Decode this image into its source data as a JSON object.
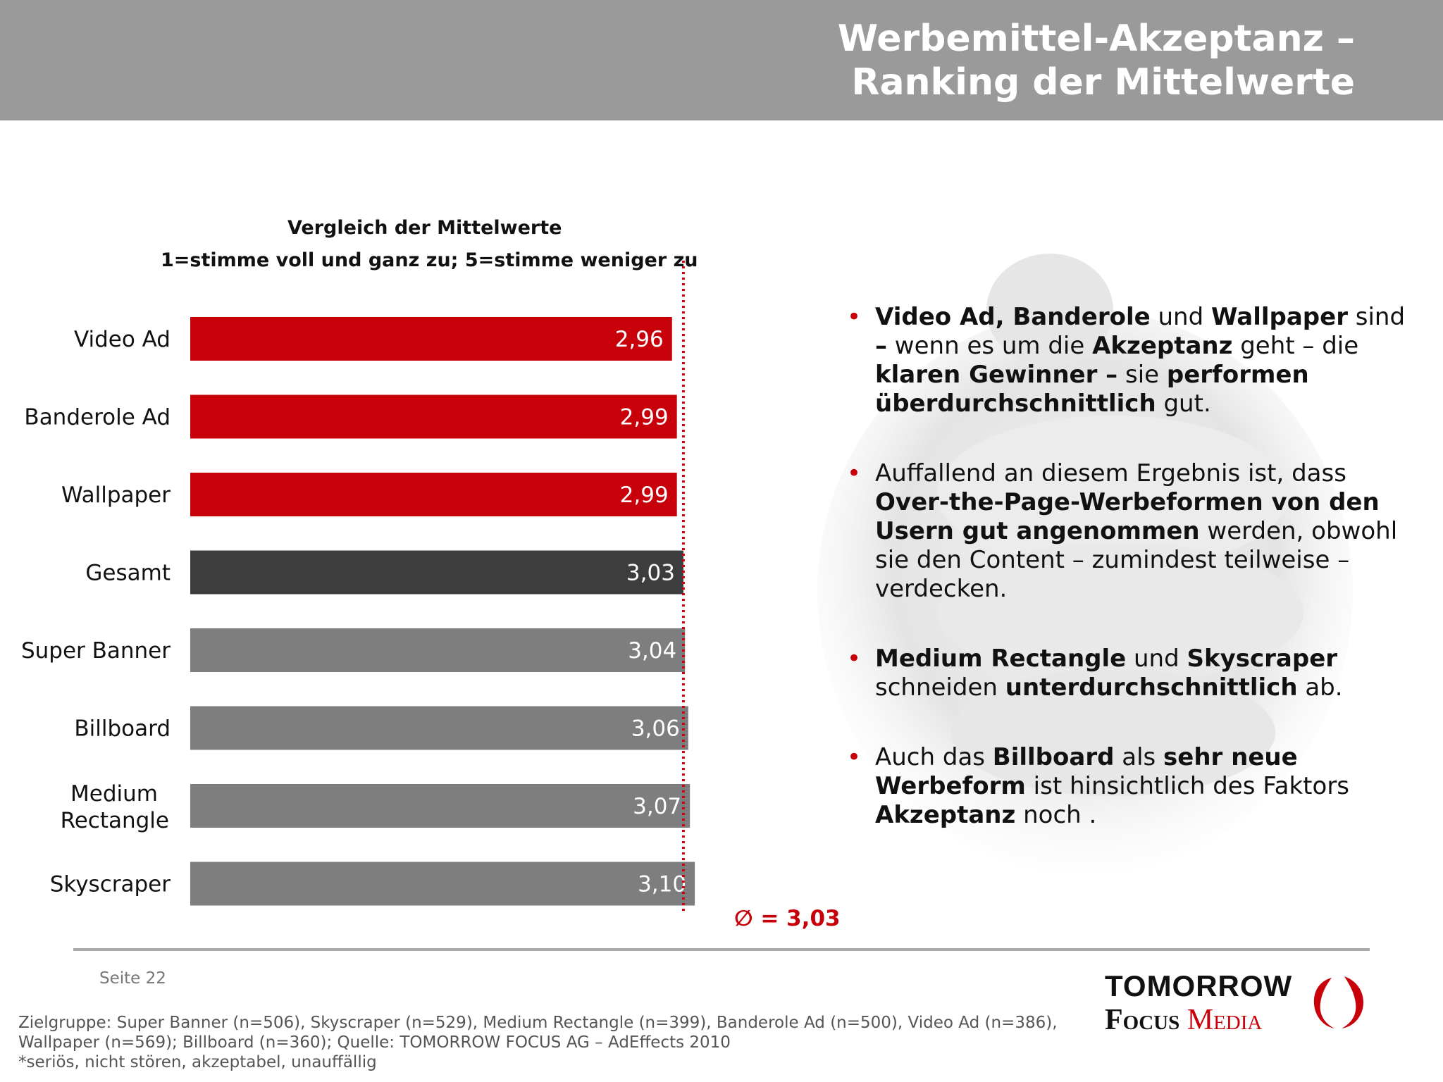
{
  "header": {
    "title_line1": "Werbemittel-Akzeptanz –",
    "title_line2": "Ranking der Mittelwerte"
  },
  "chart_data": {
    "type": "bar",
    "orientation": "horizontal",
    "title": "Vergleich der Mittelwerte",
    "subtitle": "1=stimme voll und ganz zu; 5=stimme weniger zu",
    "categories": [
      "Video Ad",
      "Banderole Ad",
      "Wallpaper",
      "Gesamt",
      "Super Banner",
      "Billboard",
      "Medium Rectangle",
      "Skyscraper"
    ],
    "values": [
      2.96,
      2.99,
      2.99,
      3.03,
      3.04,
      3.06,
      3.07,
      3.1
    ],
    "value_labels": [
      "2,96",
      "2,99",
      "2,99",
      "3,03",
      "3,04",
      "3,06",
      "3,07",
      "3,10"
    ],
    "bar_colors": [
      "#c8000a",
      "#c8000a",
      "#c8000a",
      "#3d3d3d",
      "#7e7e7e",
      "#7e7e7e",
      "#7e7e7e",
      "#7e7e7e"
    ],
    "reference_line": {
      "value": 3.03,
      "label": "∅ = 3,03",
      "color": "#c8000a",
      "style": "dotted"
    },
    "grid": false,
    "legend": "none"
  },
  "bullets": [
    [
      {
        "t": "Video Ad, Banderole",
        "b": true
      },
      {
        "t": " und ",
        "b": false
      },
      {
        "t": "Wallpaper",
        "b": true
      },
      {
        "t": " sind ",
        "b": false
      },
      {
        "t": "–",
        "b": true
      },
      {
        "t": " wenn es um die ",
        "b": false
      },
      {
        "t": "Akzeptanz",
        "b": true
      },
      {
        "t": " geht – die ",
        "b": false
      },
      {
        "t": "klaren Gewinner –",
        "b": true
      },
      {
        "t": " sie ",
        "b": false
      },
      {
        "t": "performen überdurchschnittlich",
        "b": true
      },
      {
        "t": " gut.",
        "b": false
      }
    ],
    [
      {
        "t": "Auffallend an diesem Ergebnis ist, dass ",
        "b": false
      },
      {
        "t": "Over-the-Page-Werbeformen von den Usern gut angenommen",
        "b": true
      },
      {
        "t": " werden, obwohl sie den Content – zumindest teilweise – verdecken.",
        "b": false
      }
    ],
    [
      {
        "t": "Medium Rectangle",
        "b": true
      },
      {
        "t": " und ",
        "b": false
      },
      {
        "t": "Skyscraper",
        "b": true
      },
      {
        "t": " schneiden ",
        "b": false
      },
      {
        "t": "unterdurchschnittlich",
        "b": true
      },
      {
        "t": " ab.",
        "b": false
      }
    ],
    [
      {
        "t": "Auch das ",
        "b": false
      },
      {
        "t": "Billboard",
        "b": true
      },
      {
        "t": " als ",
        "b": false
      },
      {
        "t": "sehr neue Werbeform",
        "b": true
      },
      {
        "t": " ist hinsichtlich des Faktors ",
        "b": false
      },
      {
        "t": "Akzeptanz",
        "b": true
      },
      {
        "t": " noch .",
        "b": false
      }
    ]
  ],
  "footer": {
    "page": "Seite 22",
    "note_line1": "Zielgruppe: Super Banner (n=506), Skyscraper (n=529), Medium Rectangle (n=399), Banderole Ad (n=500), Video Ad (n=386),",
    "note_line2": "Wallpaper (n=569); Billboard (n=360); Quelle: TOMORROW FOCUS AG – AdEffects 2010",
    "note_line3": "*seriös, nicht stören, akzeptabel, unauffällig"
  },
  "logo": {
    "line1": "TOMORROW",
    "line2_word1": "Focus",
    "line2_word2": "Media",
    "accent": "#c8000a"
  }
}
